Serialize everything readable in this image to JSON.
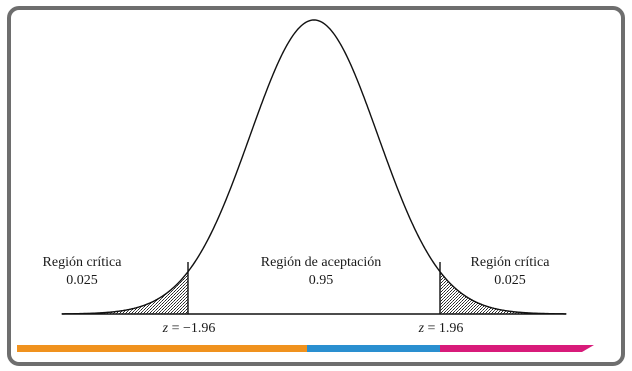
{
  "regions": {
    "left": {
      "title": "Región crítica",
      "value": "0.025"
    },
    "center": {
      "title": "Región de aceptación",
      "value": "0.95"
    },
    "right": {
      "title": "Región crítica",
      "value": "0.025"
    }
  },
  "critical_values": {
    "left": {
      "var": "z",
      "eq": " = −1.96"
    },
    "right": {
      "var": "z",
      "eq": " = 1.96"
    }
  },
  "colors": {
    "frame": "#6e6e6e",
    "curve": "#111111",
    "hatch": "#9a9a9a",
    "bar_orange": "#f0921e",
    "bar_blue": "#2a8fd0",
    "bar_magenta": "#d81b7a"
  }
}
